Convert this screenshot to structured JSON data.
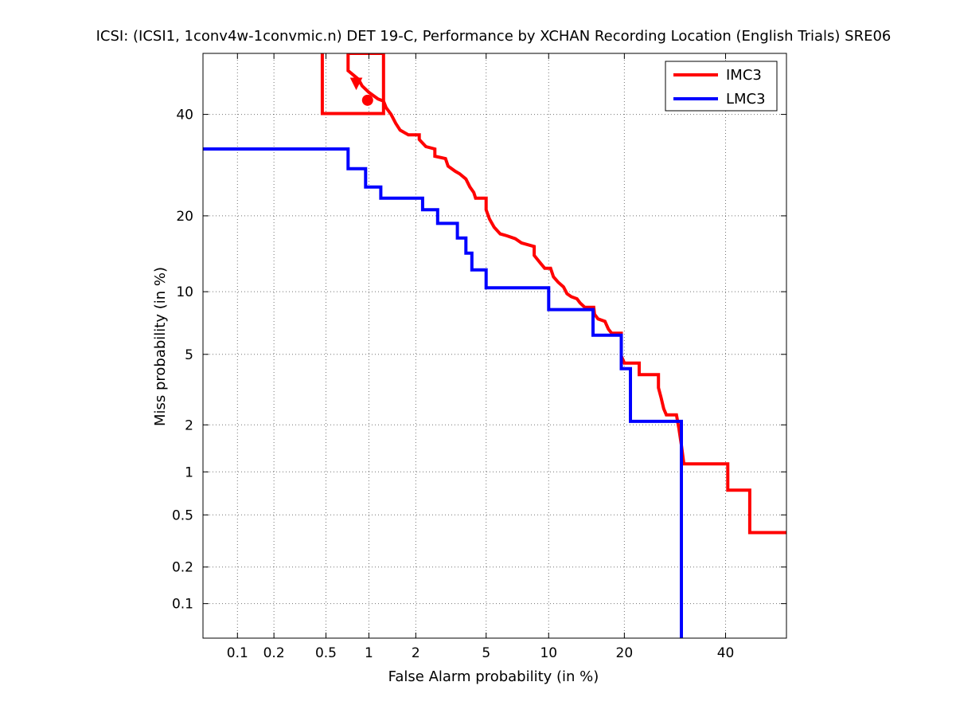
{
  "chart_data": {
    "type": "line",
    "title": "ICSI: (ICSI1, 1conv4w-1convmic.n) DET 19-C,  Performance by XCHAN Recording Location (English Trials) SRE06",
    "xlabel": "False Alarm probability (in %)",
    "ylabel": "Miss probability (in %)",
    "x_scale": "normal-deviate (probit)",
    "y_scale": "normal-deviate (probit)",
    "xlim": [
      0.05,
      54
    ],
    "ylim": [
      0.05,
      54
    ],
    "x_ticks": [
      0.1,
      0.2,
      0.5,
      1,
      2,
      5,
      10,
      20,
      40
    ],
    "x_tick_labels": [
      "0.1",
      "0.2",
      "0.5",
      "1",
      "2",
      "5",
      "10",
      "20",
      "40"
    ],
    "y_ticks": [
      0.1,
      0.2,
      0.5,
      1,
      2,
      5,
      10,
      20,
      40
    ],
    "y_tick_labels": [
      "0.1",
      "0.2",
      "0.5",
      "1",
      "2",
      "5",
      "10",
      "20",
      "40"
    ],
    "grid": true,
    "legend_position": "top-right",
    "series": [
      {
        "name": "IMC3",
        "color": "#ff0000",
        "points": [
          [
            0.47,
            54
          ],
          [
            0.47,
            40.2
          ],
          [
            1.25,
            40.2
          ],
          [
            1.25,
            54
          ],
          [
            0.72,
            54
          ],
          [
            0.72,
            50
          ],
          [
            0.85,
            48
          ],
          [
            0.9,
            46.5
          ],
          [
            1.0,
            45
          ],
          [
            1.15,
            43.5
          ],
          [
            1.25,
            43
          ],
          [
            1.3,
            41.5
          ],
          [
            1.4,
            40
          ],
          [
            1.5,
            38
          ],
          [
            1.6,
            36.5
          ],
          [
            1.8,
            35.5
          ],
          [
            2.1,
            35.5
          ],
          [
            2.1,
            34.5
          ],
          [
            2.3,
            33
          ],
          [
            2.6,
            32.5
          ],
          [
            2.6,
            31
          ],
          [
            3.0,
            30.5
          ],
          [
            3.1,
            29
          ],
          [
            3.4,
            28
          ],
          [
            3.6,
            27.5
          ],
          [
            3.9,
            26.5
          ],
          [
            4.1,
            25
          ],
          [
            4.3,
            24
          ],
          [
            4.4,
            23
          ],
          [
            5.0,
            23
          ],
          [
            5.0,
            21
          ],
          [
            5.2,
            19.5
          ],
          [
            5.5,
            18.2
          ],
          [
            5.9,
            17.2
          ],
          [
            6.4,
            16.9
          ],
          [
            7.0,
            16.5
          ],
          [
            7.5,
            15.9
          ],
          [
            8.6,
            15.4
          ],
          [
            8.6,
            14.2
          ],
          [
            9.2,
            13.2
          ],
          [
            9.6,
            12.6
          ],
          [
            10.2,
            12.6
          ],
          [
            10.5,
            11.6
          ],
          [
            11.0,
            11.0
          ],
          [
            11.6,
            10.5
          ],
          [
            12.0,
            9.8
          ],
          [
            12.5,
            9.5
          ],
          [
            13.2,
            9.3
          ],
          [
            13.6,
            8.9
          ],
          [
            14.2,
            8.5
          ],
          [
            15.4,
            8.5
          ],
          [
            15.5,
            7.9
          ],
          [
            16.0,
            7.5
          ],
          [
            17.0,
            7.3
          ],
          [
            17.5,
            6.7
          ],
          [
            18.0,
            6.4
          ],
          [
            19.5,
            6.4
          ],
          [
            19.5,
            4.9
          ],
          [
            20.0,
            4.5
          ],
          [
            22.5,
            4.5
          ],
          [
            22.5,
            3.9
          ],
          [
            26.0,
            3.9
          ],
          [
            26.0,
            3.3
          ],
          [
            26.5,
            2.9
          ],
          [
            27.0,
            2.5
          ],
          [
            27.5,
            2.3
          ],
          [
            29.5,
            2.3
          ],
          [
            30.0,
            1.9
          ],
          [
            30.5,
            1.5
          ],
          [
            31.0,
            1.13
          ],
          [
            40.5,
            1.13
          ],
          [
            40.5,
            0.75
          ],
          [
            45.5,
            0.75
          ],
          [
            45.5,
            0.37
          ],
          [
            54,
            0.37
          ]
        ]
      },
      {
        "name": "LMC3",
        "color": "#0000ff",
        "points": [
          [
            0.05,
            32.5
          ],
          [
            0.72,
            32.5
          ],
          [
            0.72,
            28.5
          ],
          [
            0.95,
            28.5
          ],
          [
            0.95,
            25
          ],
          [
            1.2,
            25
          ],
          [
            1.2,
            23
          ],
          [
            2.2,
            23
          ],
          [
            2.2,
            21
          ],
          [
            2.7,
            21
          ],
          [
            2.7,
            18.8
          ],
          [
            3.5,
            18.8
          ],
          [
            3.5,
            16.6
          ],
          [
            3.9,
            16.6
          ],
          [
            3.9,
            14.5
          ],
          [
            4.2,
            14.5
          ],
          [
            4.2,
            12.4
          ],
          [
            5.0,
            12.4
          ],
          [
            5.0,
            10.4
          ],
          [
            10.0,
            10.4
          ],
          [
            10.0,
            8.3
          ],
          [
            15.3,
            8.3
          ],
          [
            15.3,
            6.25
          ],
          [
            19.5,
            6.25
          ],
          [
            19.5,
            4.2
          ],
          [
            21.0,
            4.2
          ],
          [
            21.0,
            2.1
          ],
          [
            30.5,
            2.1
          ],
          [
            30.5,
            0.05
          ]
        ]
      }
    ],
    "markers": [
      {
        "series": "IMC3",
        "shape": "triangle-down",
        "x": 0.82,
        "y": 47,
        "color": "#ff0000"
      },
      {
        "series": "IMC3",
        "shape": "circle",
        "x": 0.98,
        "y": 43.2,
        "color": "#ff0000"
      }
    ]
  }
}
